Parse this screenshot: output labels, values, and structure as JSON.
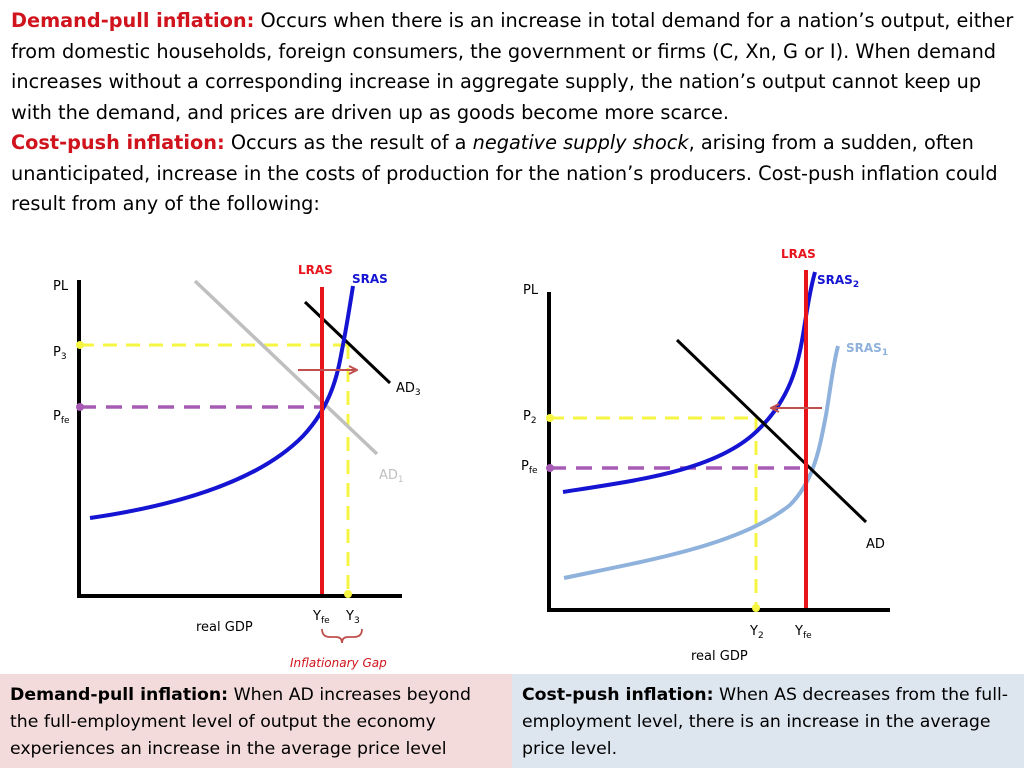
{
  "intro": {
    "demand_pull_term": "Demand-pull inflation:",
    "demand_pull_text": " Occurs when there is an increase in total demand for a nation’s output, either from domestic households, foreign consumers, the government or firms (C, Xn, G or I). When demand increases without a corresponding increase in aggregate supply, the nation’s output cannot keep up with the demand, and prices are driven up as goods become more scarce.",
    "cost_push_term": "Cost-push inflation:",
    "cost_push_text_1": " Occurs as the result of a ",
    "cost_push_emphasis": "negative supply shock",
    "cost_push_text_2": ", arising from a sudden, often unanticipated, increase in the costs of production for the nation’s producers. Cost-push inflation could result from any of the following:"
  },
  "left_graph": {
    "y_axis_label": "PL",
    "x_axis_label": "real GDP",
    "p3": "P",
    "p3_sub": "3",
    "pfe": "P",
    "pfe_sub": "fe",
    "lras": "LRAS",
    "sras": "SRAS",
    "ad3": "AD",
    "ad3_sub": "3",
    "ad1": "AD",
    "ad1_sub": "1",
    "yfe": "Y",
    "yfe_sub": "fe",
    "y3": "Y",
    "y3_sub": "3",
    "gap_caption": "Inflationary Gap"
  },
  "right_graph": {
    "y_axis_label": "PL",
    "x_axis_label": "real GDP",
    "p2": "P",
    "p2_sub": "2",
    "pfe": "P",
    "pfe_sub": "fe",
    "lras": "LRAS",
    "sras2": "SRAS",
    "sras2_sub": "2",
    "sras1": "SRAS",
    "sras1_sub": "1",
    "ad": "AD",
    "y2": "Y",
    "y2_sub": "2",
    "yfe": "Y",
    "yfe_sub": "fe"
  },
  "bottom": {
    "left_term": "Demand-pull inflation:",
    "left_text": " When AD increases beyond the full-employment level of output the economy experiences an increase in the average price level",
    "right_term": "Cost-push inflation:",
    "right_text": " When AS decreases from the full-employment level, there is an increase in the average price level."
  },
  "colors": {
    "term_red": "#d0141d",
    "lras_red": "#e8141c",
    "sras_blue": "#1414d2",
    "sras1_light_blue": "#8fb2dc",
    "ad1_gray": "#bfbfbf",
    "dash_yellow": "#f5f542",
    "dash_purple": "#a75bb5",
    "arrow_red": "#c0504d",
    "left_box_bg": "#f3dbdb",
    "right_box_bg": "#dde5ef"
  }
}
